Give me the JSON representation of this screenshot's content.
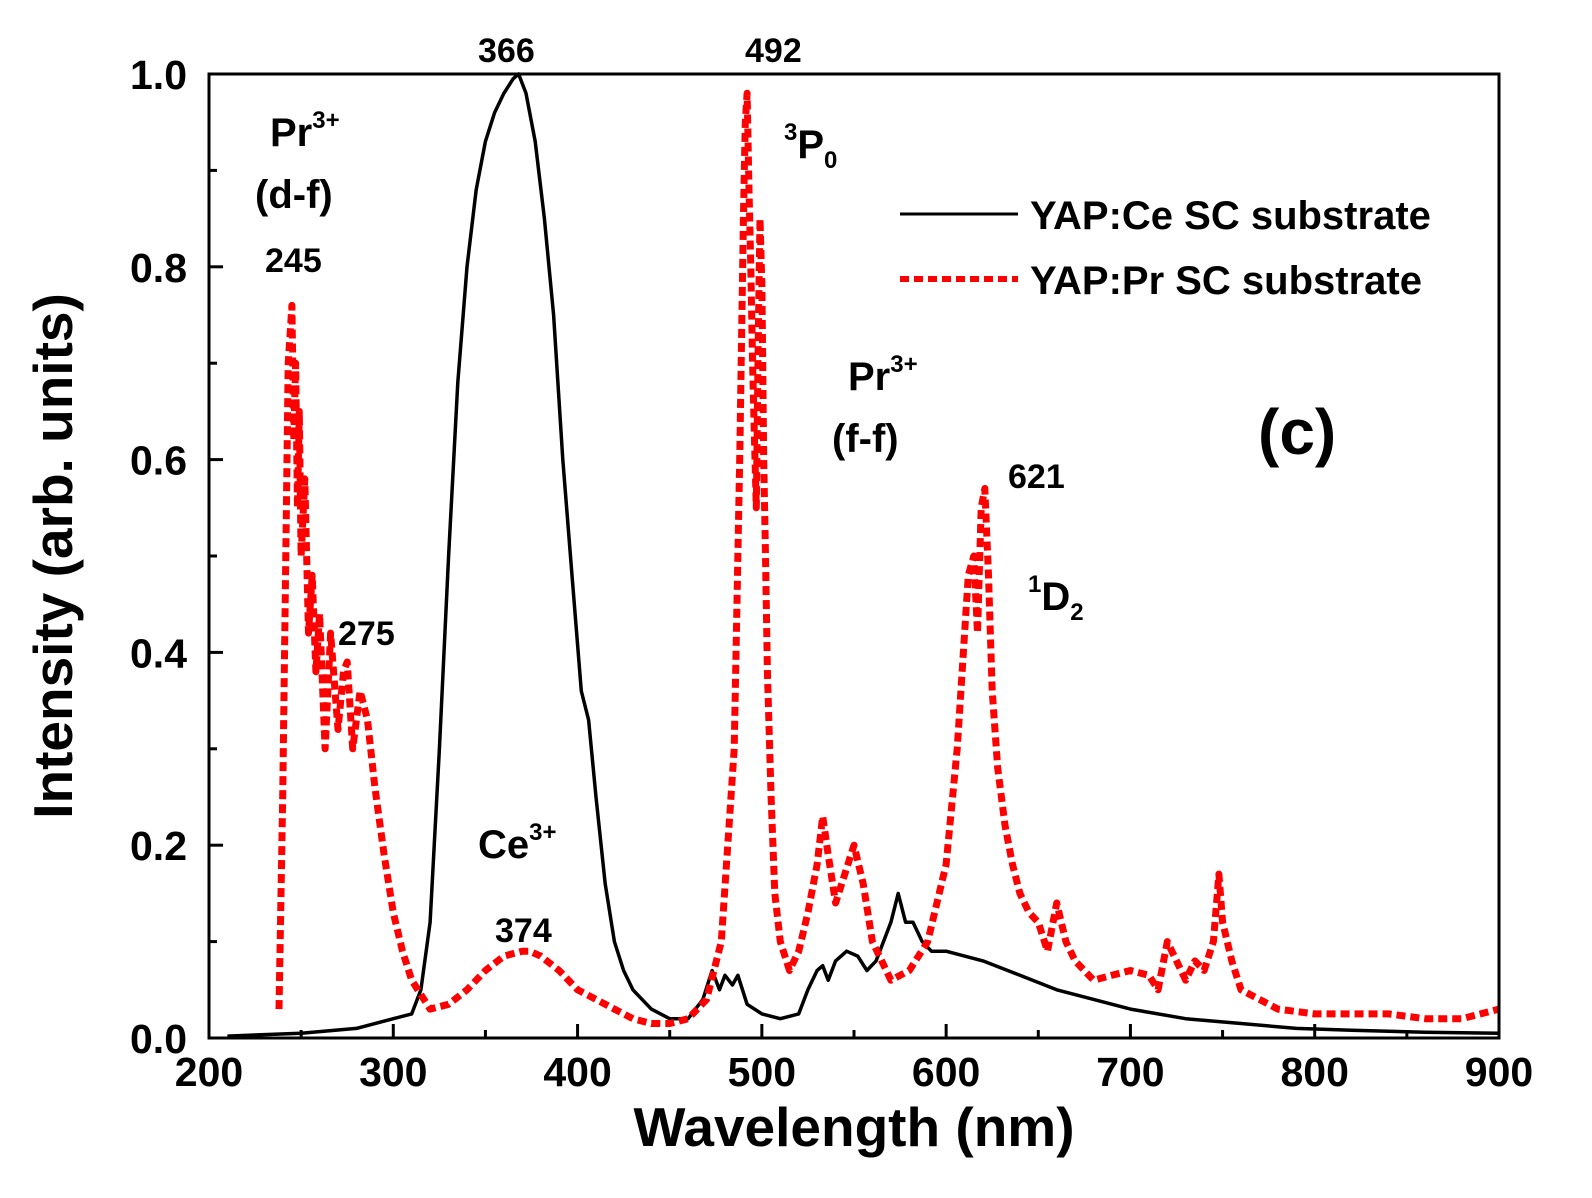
{
  "chart_data": {
    "type": "line",
    "title": "",
    "xlabel": "Wavelength (nm)",
    "ylabel": "Intensity (arb. units)",
    "xlim": [
      200,
      900
    ],
    "ylim": [
      0,
      1.0
    ],
    "xticks": [
      "200",
      "300",
      "400",
      "500",
      "600",
      "700",
      "800",
      "900"
    ],
    "yticks": [
      "0.0",
      "0.2",
      "0.4",
      "0.6",
      "0.8",
      "1.0"
    ],
    "xtick_values": [
      200,
      300,
      400,
      500,
      600,
      700,
      800,
      900
    ],
    "ytick_values": [
      0,
      0.2,
      0.4,
      0.6,
      0.8,
      1.0
    ],
    "grid": false,
    "legend_position": "top-right",
    "panel_label": "(c)",
    "series": [
      {
        "name": "YAP:Ce SC substrate",
        "color": "#000000",
        "style": "solid",
        "x": [
          210,
          250,
          280,
          300,
          310,
          315,
          320,
          325,
          330,
          335,
          340,
          345,
          350,
          355,
          360,
          365,
          368,
          372,
          377,
          382,
          387,
          392,
          397,
          402,
          406,
          410,
          415,
          420,
          425,
          430,
          440,
          450,
          460,
          468,
          473,
          477,
          480,
          484,
          487,
          492,
          500,
          510,
          520,
          525,
          530,
          533,
          536,
          540,
          546,
          552,
          557,
          562,
          566,
          570,
          574,
          578,
          582,
          587,
          592,
          600,
          620,
          640,
          660,
          680,
          700,
          730,
          760,
          790,
          820,
          860,
          900
        ],
        "y": [
          0.002,
          0.005,
          0.01,
          0.02,
          0.025,
          0.05,
          0.12,
          0.3,
          0.5,
          0.68,
          0.8,
          0.88,
          0.93,
          0.96,
          0.98,
          0.995,
          1.0,
          0.98,
          0.93,
          0.85,
          0.75,
          0.6,
          0.48,
          0.36,
          0.33,
          0.25,
          0.16,
          0.1,
          0.07,
          0.05,
          0.03,
          0.02,
          0.02,
          0.04,
          0.07,
          0.05,
          0.065,
          0.055,
          0.065,
          0.035,
          0.025,
          0.02,
          0.025,
          0.05,
          0.07,
          0.075,
          0.06,
          0.08,
          0.09,
          0.085,
          0.07,
          0.08,
          0.1,
          0.12,
          0.15,
          0.12,
          0.12,
          0.1,
          0.09,
          0.09,
          0.08,
          0.065,
          0.05,
          0.04,
          0.03,
          0.02,
          0.015,
          0.01,
          0.008,
          0.006,
          0.005
        ]
      },
      {
        "name": "YAP:Pr SC substrate",
        "color": "#ff0000",
        "style": "dashed",
        "x": [
          238,
          240,
          242,
          243,
          244,
          245,
          246,
          247,
          248,
          249,
          250,
          252,
          254,
          256,
          258,
          260,
          263,
          266,
          270,
          273,
          275,
          278,
          282,
          286,
          290,
          295,
          300,
          305,
          310,
          320,
          330,
          340,
          350,
          360,
          370,
          374,
          380,
          390,
          400,
          410,
          420,
          430,
          440,
          450,
          460,
          470,
          478,
          485,
          488,
          490,
          491,
          492,
          493,
          494,
          495,
          496,
          497,
          498,
          499,
          500,
          501,
          502,
          503,
          505,
          507,
          510,
          515,
          520,
          525,
          530,
          533,
          536,
          540,
          545,
          550,
          555,
          560,
          570,
          580,
          590,
          600,
          606,
          612,
          615,
          617,
          619,
          621,
          623,
          625,
          628,
          632,
          636,
          640,
          645,
          650,
          655,
          660,
          665,
          670,
          680,
          690,
          700,
          710,
          715,
          720,
          725,
          730,
          735,
          740,
          745,
          748,
          750,
          755,
          760,
          770,
          780,
          800,
          820,
          840,
          860,
          880,
          900
        ],
        "y": [
          0.03,
          0.25,
          0.55,
          0.7,
          0.73,
          0.76,
          0.62,
          0.7,
          0.55,
          0.65,
          0.5,
          0.58,
          0.42,
          0.48,
          0.38,
          0.44,
          0.3,
          0.42,
          0.32,
          0.38,
          0.39,
          0.3,
          0.36,
          0.33,
          0.26,
          0.19,
          0.13,
          0.09,
          0.06,
          0.03,
          0.035,
          0.05,
          0.07,
          0.085,
          0.09,
          0.09,
          0.085,
          0.07,
          0.05,
          0.04,
          0.03,
          0.02,
          0.015,
          0.015,
          0.02,
          0.04,
          0.1,
          0.3,
          0.6,
          0.85,
          0.95,
          0.98,
          0.88,
          0.8,
          0.7,
          0.62,
          0.55,
          0.72,
          0.85,
          0.78,
          0.6,
          0.5,
          0.38,
          0.25,
          0.15,
          0.1,
          0.07,
          0.09,
          0.13,
          0.18,
          0.23,
          0.19,
          0.14,
          0.17,
          0.2,
          0.16,
          0.1,
          0.06,
          0.07,
          0.1,
          0.18,
          0.3,
          0.48,
          0.5,
          0.42,
          0.55,
          0.57,
          0.48,
          0.36,
          0.28,
          0.22,
          0.18,
          0.15,
          0.13,
          0.12,
          0.09,
          0.14,
          0.1,
          0.08,
          0.06,
          0.065,
          0.07,
          0.065,
          0.05,
          0.1,
          0.08,
          0.06,
          0.08,
          0.07,
          0.1,
          0.17,
          0.12,
          0.08,
          0.05,
          0.04,
          0.03,
          0.025,
          0.025,
          0.025,
          0.02,
          0.02,
          0.03
        ]
      }
    ],
    "annotations": [
      {
        "id": "pr-df-ion",
        "base": "Pr",
        "sup": "3+"
      },
      {
        "id": "pr-df-type",
        "text": "(d-f)"
      },
      {
        "id": "pr-ff-ion",
        "base": "Pr",
        "sup": "3+"
      },
      {
        "id": "pr-ff-type",
        "text": "(f-f)"
      },
      {
        "id": "ce-ion",
        "base": "Ce",
        "sup": "3+"
      },
      {
        "id": "p0-level",
        "pre": "3",
        "base": "P",
        "sub": "0"
      },
      {
        "id": "d2-level",
        "pre": "1",
        "base": "D",
        "sub": "2"
      },
      {
        "id": "peak-245",
        "text": "245"
      },
      {
        "id": "peak-275",
        "text": "275"
      },
      {
        "id": "peak-366",
        "text": "366"
      },
      {
        "id": "peak-374",
        "text": "374"
      },
      {
        "id": "peak-492",
        "text": "492"
      },
      {
        "id": "peak-621",
        "text": "621"
      }
    ]
  }
}
